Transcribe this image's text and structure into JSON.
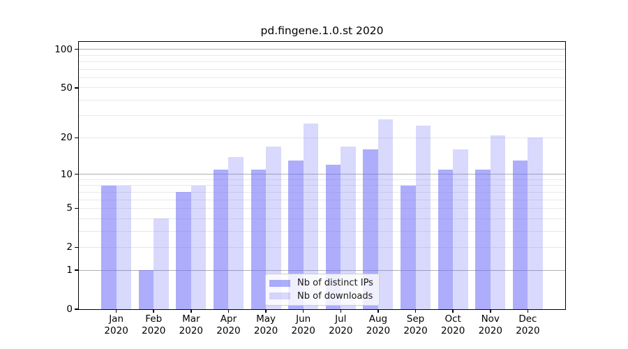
{
  "background": "#ffffff",
  "chart_data": {
    "type": "bar",
    "title": "pd.fingene.1.0.st 2020",
    "year_label": "2020",
    "months": [
      "Jan",
      "Feb",
      "Mar",
      "Apr",
      "May",
      "Jun",
      "Jul",
      "Aug",
      "Sep",
      "Oct",
      "Nov",
      "Dec"
    ],
    "categories": [
      "Jan 2020",
      "Feb 2020",
      "Mar 2020",
      "Apr 2020",
      "May 2020",
      "Jun 2020",
      "Jul 2020",
      "Aug 2020",
      "Sep 2020",
      "Oct 2020",
      "Nov 2020",
      "Dec 2020"
    ],
    "series": [
      {
        "name": "Nb of distinct IPs",
        "key": "distinct-ips",
        "color": "rgba(105,105,248,0.55)",
        "values": [
          8,
          1,
          7,
          11,
          11,
          13,
          12,
          16,
          8,
          11,
          11,
          13
        ]
      },
      {
        "name": "Nb of downloads",
        "key": "downloads",
        "color": "rgba(105,105,248,0.25)",
        "values": [
          8,
          4,
          8,
          14,
          17,
          26,
          17,
          28,
          25,
          16,
          21,
          20
        ]
      }
    ],
    "y_scale": "log1p",
    "ylim": [
      0,
      115
    ],
    "xlim_slots": 13,
    "y_axis": {
      "labeled_ticks": [
        {
          "v": 0,
          "label": "0"
        },
        {
          "v": 1,
          "label": "1"
        },
        {
          "v": 2,
          "label": "2"
        },
        {
          "v": 5,
          "label": "5"
        },
        {
          "v": 10,
          "label": "10"
        },
        {
          "v": 20,
          "label": "20"
        },
        {
          "v": 50,
          "label": "50"
        },
        {
          "v": 100,
          "label": "100"
        }
      ],
      "major_grid_values": [
        1,
        10,
        100
      ],
      "minor_grid_values": [
        2,
        3,
        4,
        5,
        6,
        7,
        8,
        9,
        20,
        30,
        40,
        50,
        60,
        70,
        80,
        90
      ]
    },
    "grid": true,
    "legend": {
      "position": "lower center",
      "entries": [
        "Nb of distinct IPs",
        "Nb of downloads"
      ]
    },
    "colors": {
      "major_grid": "#b0b0b0",
      "minor_grid": "#e8e8e8",
      "spine": "#000000"
    }
  }
}
